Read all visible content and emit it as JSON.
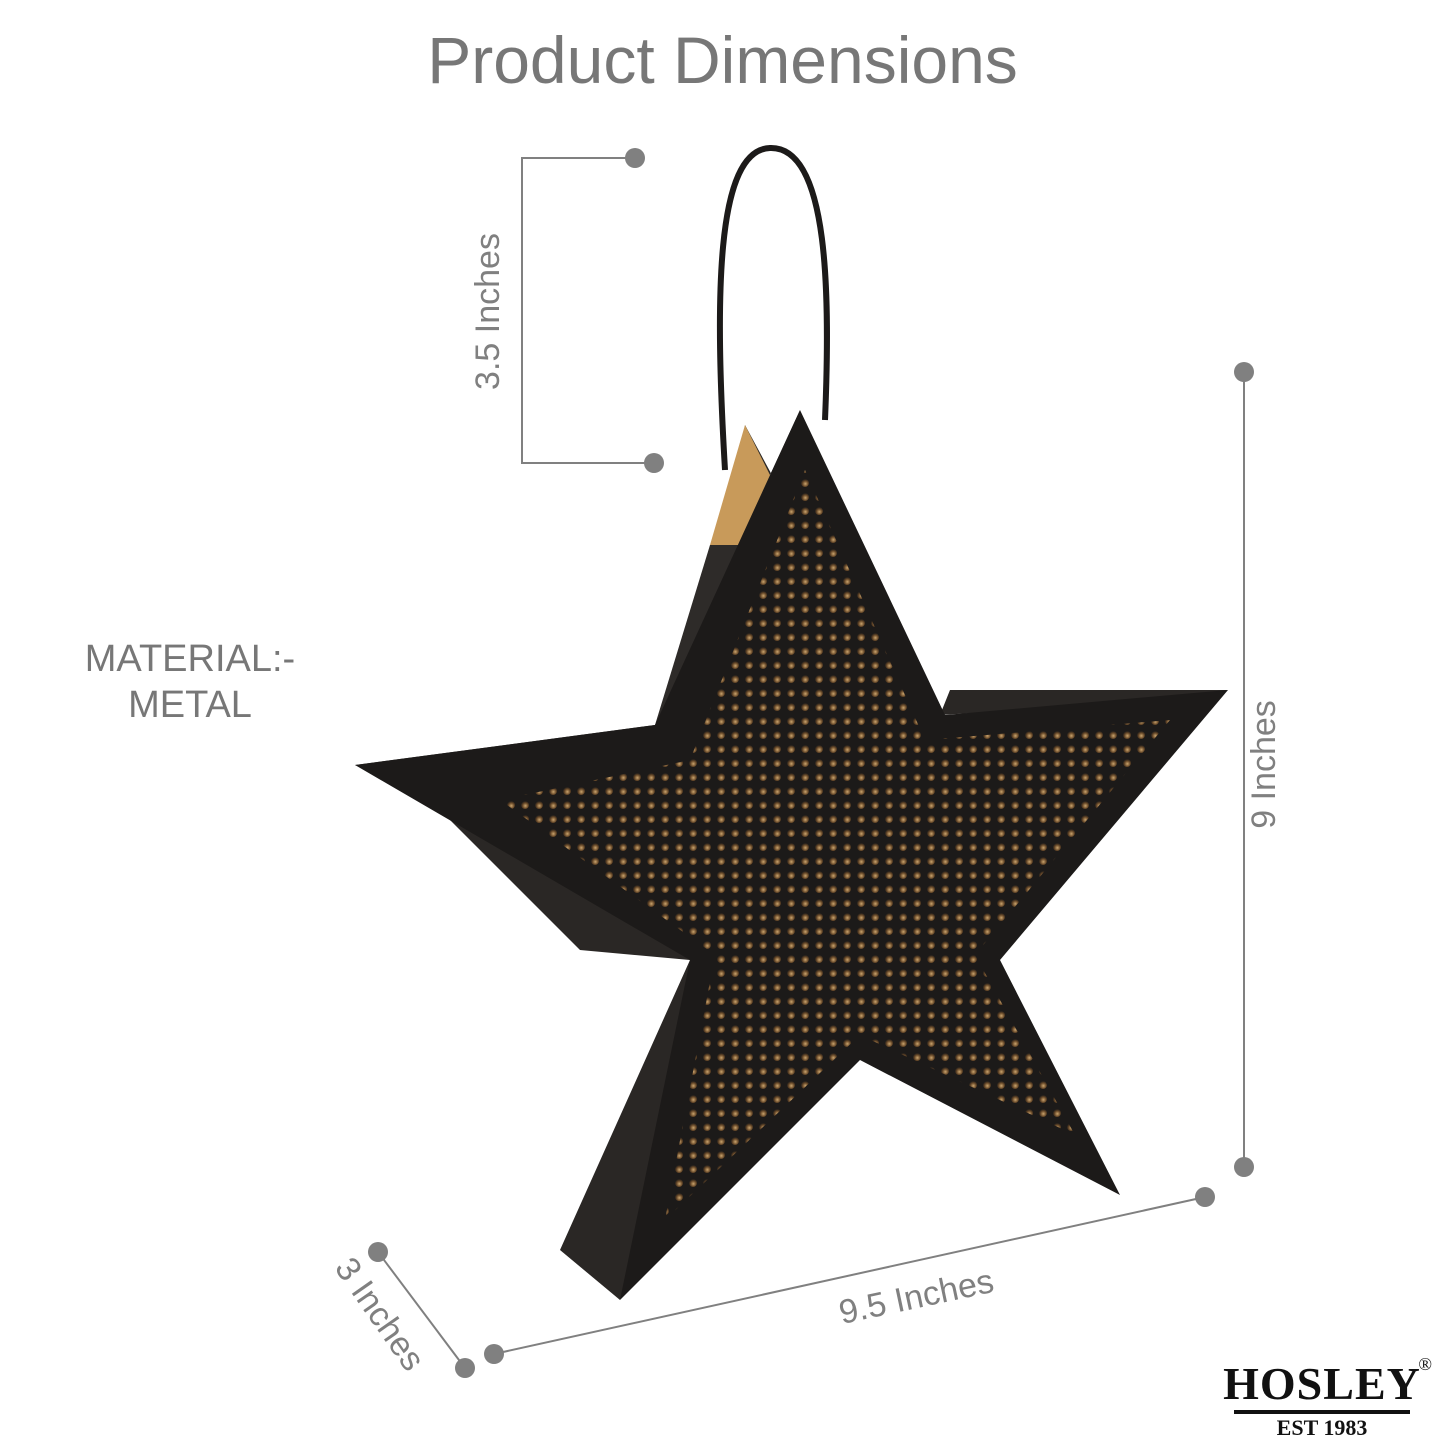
{
  "title": "Product Dimensions",
  "material": {
    "label": "MATERIAL:-",
    "value": "METAL"
  },
  "dimensions": {
    "handle": "3.5 Inches",
    "height": "9 Inches",
    "width": "9.5 Inches",
    "depth": "3 Inches"
  },
  "logo": {
    "name": "HOSLEY",
    "tagline": "EST 1983",
    "registered": "®"
  },
  "colors": {
    "text": "#777777",
    "guide": "#808080",
    "metal": "#1c1a19",
    "glow": "#c89a5a"
  }
}
